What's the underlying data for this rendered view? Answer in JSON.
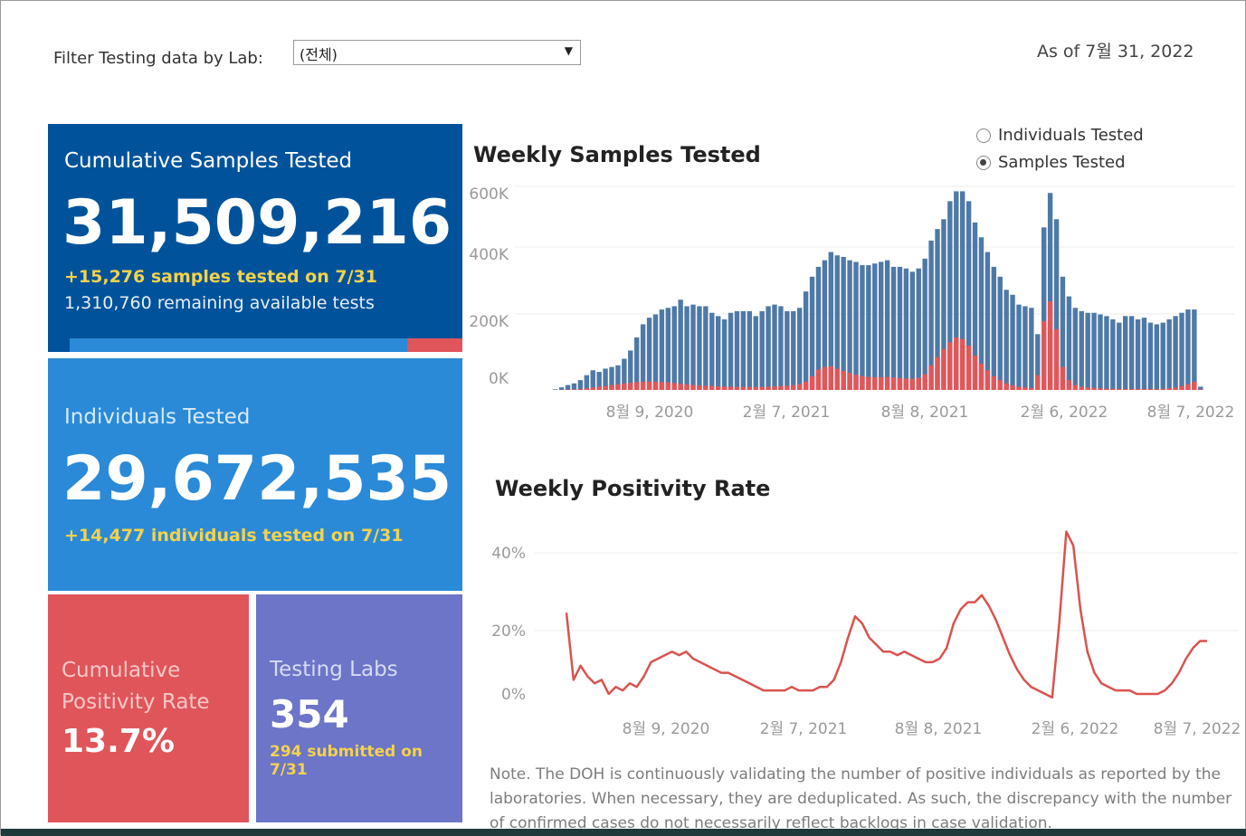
{
  "filter": {
    "label": "Filter Testing data by Lab:",
    "selected": "(전체)"
  },
  "as_of": "As of 7월 31, 2022",
  "samples_card": {
    "title": "Cumulative Samples Tested",
    "value": "31,509,216",
    "daily": "+15,276 samples tested on 7/31",
    "remaining": "1,310,760 remaining available tests",
    "progress_fraction": 0.86
  },
  "individuals_card": {
    "title": "Individuals Tested",
    "value": "29,672,535",
    "daily": "+14,477  individuals  tested on 7/31"
  },
  "positivity_card": {
    "title_line1": "Cumulative",
    "title_line2": "Positivity Rate",
    "value": "13.7%"
  },
  "labs_card": {
    "title": "Testing Labs",
    "value": "354",
    "submitted": "294 submitted on 7/31"
  },
  "toggle": {
    "options": [
      {
        "label": "Individuals Tested",
        "checked": false
      },
      {
        "label": "Samples Tested",
        "checked": true
      }
    ]
  },
  "colors": {
    "samples_bar": "#4e79a7",
    "positive_bar": "#e15759",
    "positivity_line": "#d9534f"
  },
  "chart_data": [
    {
      "type": "bar",
      "title": "Weekly Samples Tested",
      "x_tick_labels": [
        "8월 9, 2020",
        "2월 7, 2021",
        "8월 8, 2021",
        "2월 6, 2022",
        "8월 7, 2022"
      ],
      "y_tick_labels": [
        "600K",
        "400K",
        "200K",
        "0K"
      ],
      "ylim": [
        0,
        620000
      ],
      "grid": true,
      "series": [
        {
          "values": [
            2000,
            8000,
            15000,
            20000,
            30000,
            45000,
            60000,
            55000,
            65000,
            70000,
            75000,
            95000,
            120000,
            160000,
            200000,
            220000,
            230000,
            245000,
            250000,
            255000,
            275000,
            255000,
            260000,
            255000,
            255000,
            235000,
            225000,
            215000,
            235000,
            240000,
            240000,
            240000,
            225000,
            240000,
            255000,
            260000,
            255000,
            240000,
            240000,
            250000,
            300000,
            345000,
            375000,
            395000,
            420000,
            410000,
            405000,
            395000,
            390000,
            380000,
            380000,
            385000,
            390000,
            395000,
            375000,
            375000,
            370000,
            360000,
            370000,
            400000,
            455000,
            490000,
            520000,
            575000,
            605000,
            605000,
            575000,
            510000,
            465000,
            420000,
            375000,
            345000,
            305000,
            290000,
            260000,
            255000,
            250000,
            170000,
            495000,
            600000,
            520000,
            345000,
            285000,
            250000,
            240000,
            235000,
            235000,
            230000,
            225000,
            215000,
            205000,
            225000,
            225000,
            215000,
            220000,
            205000,
            200000,
            205000,
            215000,
            225000,
            235000,
            245000,
            245000,
            10000
          ]
        },
        {
          "values": [
            0,
            500,
            1000,
            2000,
            3000,
            5000,
            8000,
            10000,
            12000,
            15000,
            17000,
            20000,
            22000,
            24000,
            25000,
            26000,
            25000,
            24000,
            23000,
            21000,
            19000,
            17000,
            15000,
            14000,
            13000,
            12000,
            11000,
            10000,
            9500,
            9000,
            9000,
            9000,
            9000,
            9000,
            10000,
            11000,
            12000,
            13000,
            15000,
            18000,
            25000,
            42000,
            62000,
            70000,
            72000,
            65000,
            58000,
            52000,
            46000,
            42000,
            40000,
            39000,
            39000,
            40000,
            38000,
            36000,
            35000,
            34000,
            37000,
            48000,
            75000,
            100000,
            125000,
            145000,
            160000,
            155000,
            135000,
            105000,
            80000,
            60000,
            42000,
            30000,
            20000,
            14000,
            10000,
            8000,
            6000,
            45000,
            210000,
            270000,
            185000,
            70000,
            30000,
            15000,
            10000,
            8000,
            6000,
            5000,
            4000,
            3500,
            3000,
            3000,
            3000,
            3000,
            3000,
            3000,
            3000,
            3500,
            5000,
            8000,
            12000,
            18000,
            25000,
            2000
          ]
        }
      ]
    },
    {
      "type": "line",
      "title": "Weekly Positivity Rate",
      "x_tick_labels": [
        "8월 9, 2020",
        "2월 7, 2021",
        "8월 8, 2021",
        "2월 6, 2022",
        "8월 7, 2022"
      ],
      "y_tick_labels": [
        "40%",
        "20%",
        "0%"
      ],
      "ylim": [
        -2,
        46
      ],
      "grid": true,
      "series": [
        {
          "values": [
            23,
            4,
            8,
            5,
            3,
            4,
            0,
            2,
            1,
            3,
            2,
            5,
            9,
            10,
            11,
            12,
            11,
            12,
            10,
            9,
            8,
            7,
            6,
            6,
            5,
            4,
            3,
            2,
            1,
            1,
            1,
            1,
            2,
            1,
            1,
            1,
            2,
            2,
            4,
            9,
            16,
            22,
            20,
            16,
            14,
            12,
            12,
            11,
            12,
            11,
            10,
            9,
            9,
            10,
            13,
            20,
            24,
            26,
            26,
            28,
            25,
            21,
            16,
            11,
            7,
            4,
            2,
            1,
            0,
            -1,
            20,
            46,
            42,
            24,
            12,
            6,
            3,
            2,
            1,
            1,
            1,
            0,
            0,
            0,
            0,
            1,
            3,
            6,
            10,
            13,
            15,
            15
          ]
        }
      ]
    }
  ],
  "note": "Note. The DOH is continuously validating the number of positive individuals as reported by the laboratories. When necessary, they are deduplicated. As such, the discrepancy with the number of confirmed cases do not necessarily reflect backlogs in case validation."
}
